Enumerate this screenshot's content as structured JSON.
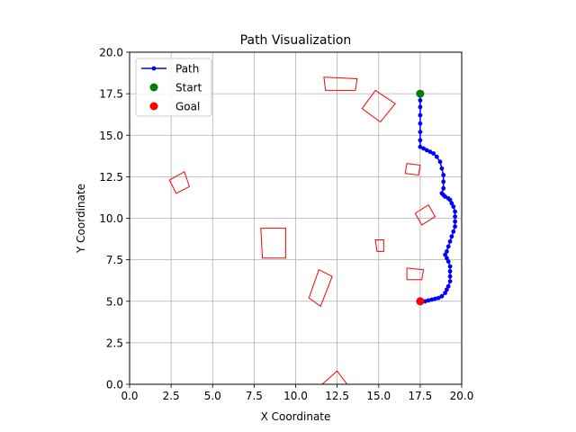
{
  "chart_data": {
    "type": "line",
    "title": "Path Visualization",
    "xlabel": "X Coordinate",
    "ylabel": "Y Coordinate",
    "xlim": [
      0,
      20
    ],
    "ylim": [
      0,
      20
    ],
    "xticks": [
      "0.0",
      "2.5",
      "5.0",
      "7.5",
      "10.0",
      "12.5",
      "15.0",
      "17.5",
      "20.0"
    ],
    "yticks": [
      "0.0",
      "2.5",
      "5.0",
      "7.5",
      "10.0",
      "12.5",
      "15.0",
      "17.5",
      "20.0"
    ],
    "grid": true,
    "legend_position": "upper-left",
    "series": [
      {
        "name": "Path",
        "color": "#0000ff",
        "marker": "dot",
        "points": [
          [
            17.5,
            17.5
          ],
          [
            17.5,
            17.1
          ],
          [
            17.5,
            16.7
          ],
          [
            17.5,
            16.2
          ],
          [
            17.5,
            15.7
          ],
          [
            17.5,
            15.2
          ],
          [
            17.5,
            14.7
          ],
          [
            17.5,
            14.3
          ],
          [
            17.7,
            14.2
          ],
          [
            17.9,
            14.1
          ],
          [
            18.1,
            14.0
          ],
          [
            18.3,
            13.9
          ],
          [
            18.5,
            13.7
          ],
          [
            18.7,
            13.4
          ],
          [
            18.8,
            13.0
          ],
          [
            18.9,
            12.6
          ],
          [
            18.9,
            12.2
          ],
          [
            18.9,
            11.8
          ],
          [
            18.8,
            11.5
          ],
          [
            18.9,
            11.4
          ],
          [
            19.0,
            11.3
          ],
          [
            19.2,
            11.2
          ],
          [
            19.3,
            11.1
          ],
          [
            19.4,
            10.9
          ],
          [
            19.5,
            10.7
          ],
          [
            19.6,
            10.4
          ],
          [
            19.6,
            10.1
          ],
          [
            19.6,
            9.8
          ],
          [
            19.6,
            9.5
          ],
          [
            19.5,
            9.2
          ],
          [
            19.4,
            8.9
          ],
          [
            19.3,
            8.6
          ],
          [
            19.2,
            8.3
          ],
          [
            19.1,
            8.0
          ],
          [
            19.0,
            7.8
          ],
          [
            19.1,
            7.6
          ],
          [
            19.2,
            7.4
          ],
          [
            19.3,
            7.1
          ],
          [
            19.3,
            6.8
          ],
          [
            19.3,
            6.5
          ],
          [
            19.3,
            6.2
          ],
          [
            19.2,
            5.9
          ],
          [
            19.1,
            5.7
          ],
          [
            19.0,
            5.5
          ],
          [
            18.8,
            5.3
          ],
          [
            18.6,
            5.2
          ],
          [
            18.4,
            5.15
          ],
          [
            18.2,
            5.1
          ],
          [
            18.0,
            5.05
          ],
          [
            17.8,
            5.0
          ],
          [
            17.5,
            5.0
          ]
        ]
      },
      {
        "name": "Start",
        "color": "#008000",
        "marker": "circle",
        "points": [
          [
            17.5,
            17.5
          ]
        ]
      },
      {
        "name": "Goal",
        "color": "#ff0000",
        "marker": "circle",
        "points": [
          [
            17.5,
            5.0
          ]
        ]
      }
    ],
    "obstacles": {
      "color": "#ff0000",
      "shapes": [
        [
          [
            11.7,
            18.5
          ],
          [
            13.7,
            18.4
          ],
          [
            13.6,
            17.7
          ],
          [
            11.8,
            17.7
          ]
        ],
        [
          [
            14.8,
            17.7
          ],
          [
            16.0,
            16.9
          ],
          [
            15.1,
            15.8
          ],
          [
            14.0,
            16.6
          ]
        ],
        [
          [
            2.4,
            12.3
          ],
          [
            3.3,
            12.8
          ],
          [
            3.6,
            11.9
          ],
          [
            2.8,
            11.5
          ]
        ],
        [
          [
            16.7,
            13.3
          ],
          [
            17.5,
            13.2
          ],
          [
            17.4,
            12.6
          ],
          [
            16.6,
            12.7
          ]
        ],
        [
          [
            17.2,
            10.3
          ],
          [
            18.0,
            10.8
          ],
          [
            18.4,
            10.1
          ],
          [
            17.6,
            9.6
          ]
        ],
        [
          [
            7.9,
            9.4
          ],
          [
            9.4,
            9.4
          ],
          [
            9.4,
            7.6
          ],
          [
            8.0,
            7.6
          ]
        ],
        [
          [
            14.8,
            8.7
          ],
          [
            15.3,
            8.7
          ],
          [
            15.3,
            8.0
          ],
          [
            14.9,
            8.0
          ]
        ],
        [
          [
            16.7,
            7.0
          ],
          [
            17.7,
            6.9
          ],
          [
            17.6,
            6.3
          ],
          [
            16.7,
            6.3
          ]
        ],
        [
          [
            11.4,
            6.9
          ],
          [
            12.2,
            6.5
          ],
          [
            11.5,
            4.7
          ],
          [
            10.8,
            5.2
          ]
        ],
        [
          [
            12.5,
            0.8
          ],
          [
            13.1,
            0.0
          ],
          [
            11.6,
            0.0
          ]
        ]
      ]
    }
  }
}
